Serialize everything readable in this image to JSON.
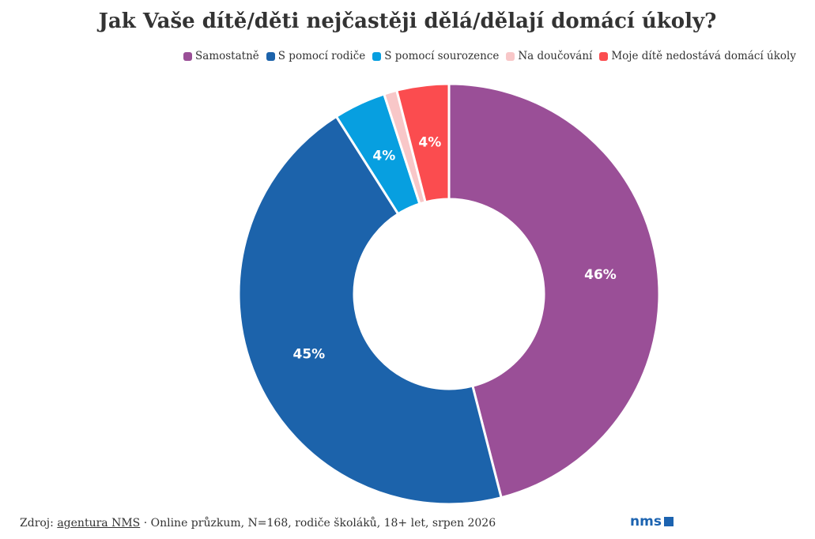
{
  "chart_data": {
    "type": "pie",
    "variant": "donut",
    "title": "Jak Vaše dítě/děti nejčastěji dělá/dělají domácí úkoly?",
    "legend_position": "top-right",
    "slices": [
      {
        "name": "Samostatně",
        "value": 46,
        "label": "46%",
        "color": "#9a4f97"
      },
      {
        "name": "S pomocí rodiče",
        "value": 45,
        "label": "45%",
        "color": "#1c63ab"
      },
      {
        "name": "S pomocí sourozence",
        "value": 4,
        "label": "4%",
        "color": "#079fe0"
      },
      {
        "name": "Na doučování",
        "value": 1,
        "label": "",
        "color": "#f8c7c8"
      },
      {
        "name": "Moje dítě nedostává domácí úkoly",
        "value": 4,
        "label": "4%",
        "color": "#fb4c4f"
      }
    ]
  },
  "footer": {
    "source_prefix": "Zdroj:",
    "source_link": "agentura NMS",
    "separator": "·",
    "note": "Online průzkum, N=168, rodiče školáků, 18+ let, srpen 2026"
  },
  "logo": {
    "text": "nms",
    "color": "#1c63b0"
  }
}
